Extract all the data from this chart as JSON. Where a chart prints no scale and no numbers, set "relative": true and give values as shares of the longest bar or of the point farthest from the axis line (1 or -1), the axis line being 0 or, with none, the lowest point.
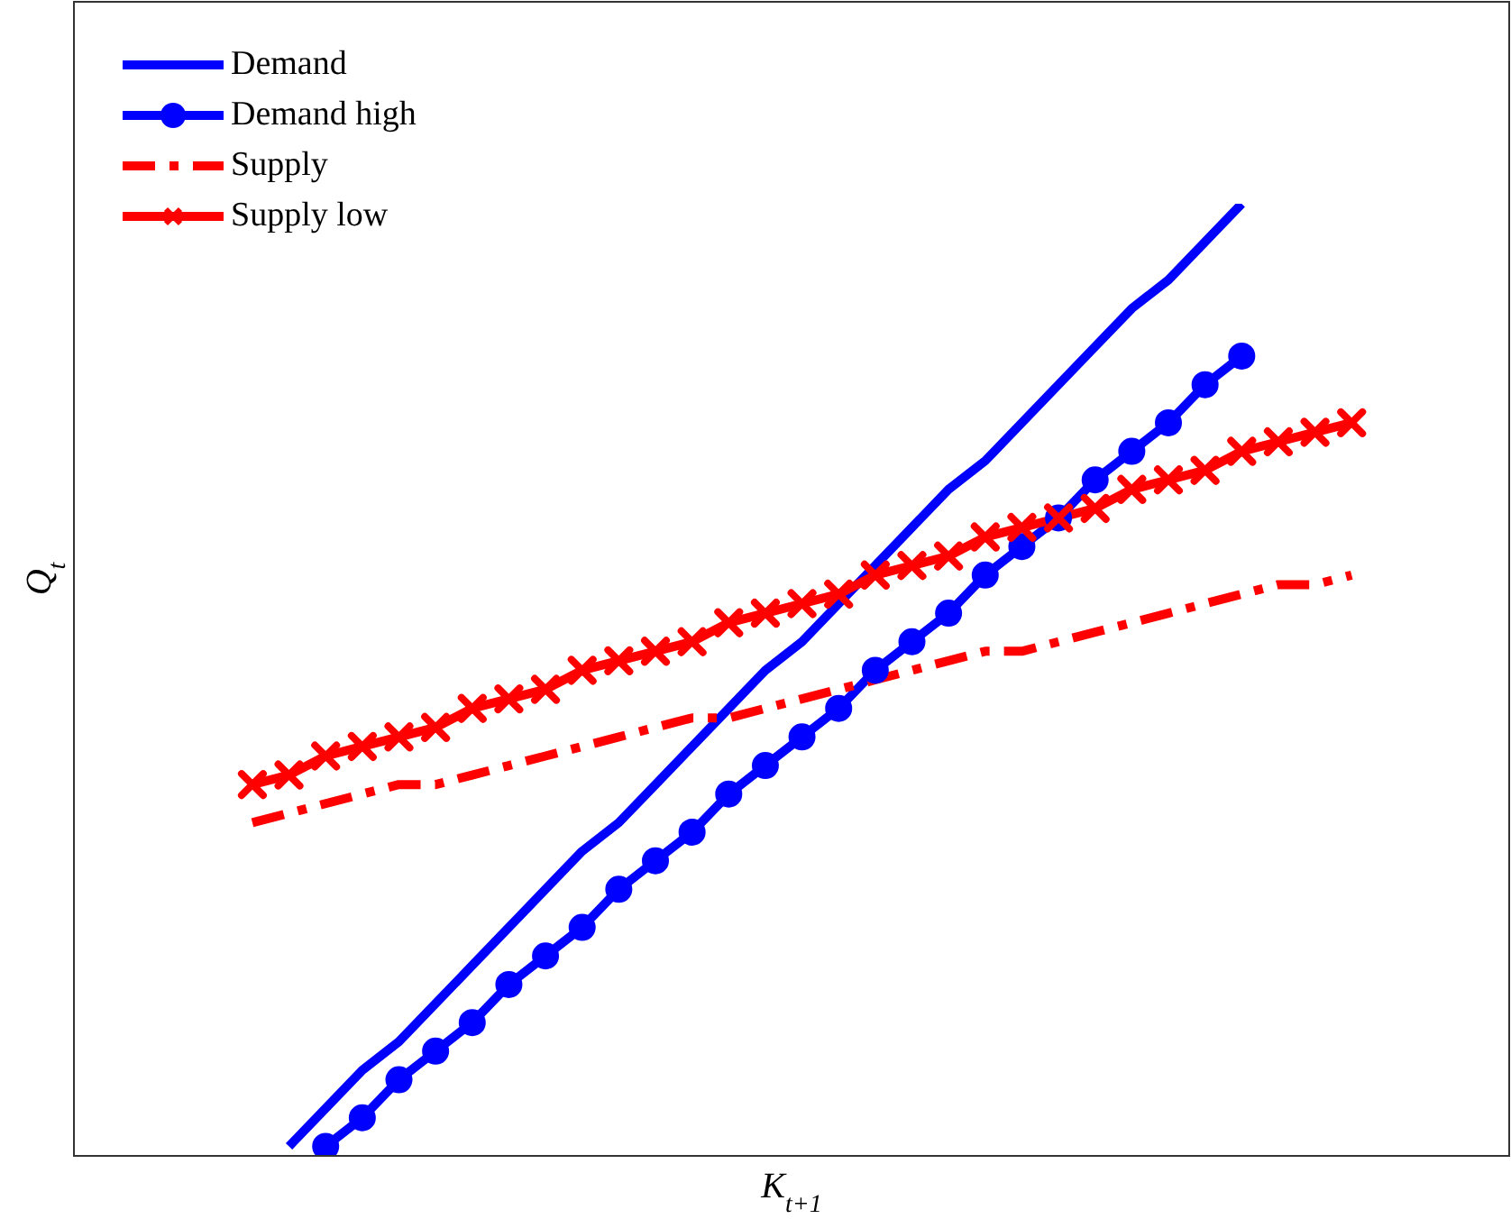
{
  "chart_data": {
    "type": "line",
    "relative": true,
    "xlabel": "K$_{t+1}$",
    "ylabel": "Q$_{t}$",
    "legend": "top left",
    "grid": false,
    "categories": [
      null,
      null,
      null,
      null,
      null,
      null,
      null,
      null,
      null,
      null,
      null,
      null,
      null,
      null,
      null,
      null,
      null,
      null,
      null,
      null,
      null,
      null,
      null,
      null,
      null,
      null,
      null,
      null,
      null,
      null,
      null
    ],
    "series": [
      {
        "name": "Demand",
        "color": "#0000ff",
        "marker": "none",
        "line_style": "solid",
        "values": [
          null,
          0.01,
          0.05,
          0.09,
          0.12,
          0.16,
          0.2,
          0.24,
          0.28,
          0.32,
          0.35,
          0.39,
          0.43,
          0.47,
          0.51,
          0.54,
          0.58,
          0.62,
          0.66,
          0.7,
          0.73,
          0.77,
          0.81,
          0.85,
          0.89,
          0.92,
          0.96,
          1,
          null,
          null,
          null
        ]
      },
      {
        "name": "Demand high",
        "color": "#0000ff",
        "marker": "circle",
        "line_style": "solid",
        "values": [
          null,
          null,
          0.01,
          0.04,
          0.08,
          0.11,
          0.14,
          0.18,
          0.21,
          0.24,
          0.28,
          0.31,
          0.34,
          0.38,
          0.41,
          0.44,
          0.47,
          0.51,
          0.54,
          0.57,
          0.61,
          0.64,
          0.67,
          0.71,
          0.74,
          0.77,
          0.81,
          0.84,
          null,
          null,
          null
        ]
      },
      {
        "name": "Supply",
        "color": "#ff0000",
        "marker": "none",
        "line_style": "dashdot",
        "values": [
          0.35,
          0.36,
          0.37,
          0.38,
          0.39,
          0.39,
          0.4,
          0.41,
          0.42,
          0.43,
          0.44,
          0.45,
          0.46,
          0.46,
          0.47,
          0.48,
          0.49,
          0.5,
          0.51,
          0.52,
          0.53,
          0.53,
          0.54,
          0.55,
          0.56,
          0.57,
          0.58,
          0.59,
          0.6,
          0.6,
          0.61
        ]
      },
      {
        "name": "Supply low",
        "color": "#ff0000",
        "marker": "cross",
        "line_style": "solid",
        "values": [
          0.39,
          0.4,
          0.42,
          0.43,
          0.44,
          0.45,
          0.47,
          0.48,
          0.49,
          0.51,
          0.52,
          0.53,
          0.54,
          0.56,
          0.57,
          0.58,
          0.59,
          0.61,
          0.62,
          0.63,
          0.65,
          0.66,
          0.67,
          0.68,
          0.7,
          0.71,
          0.72,
          0.74,
          0.75,
          0.76,
          0.77
        ]
      }
    ]
  }
}
